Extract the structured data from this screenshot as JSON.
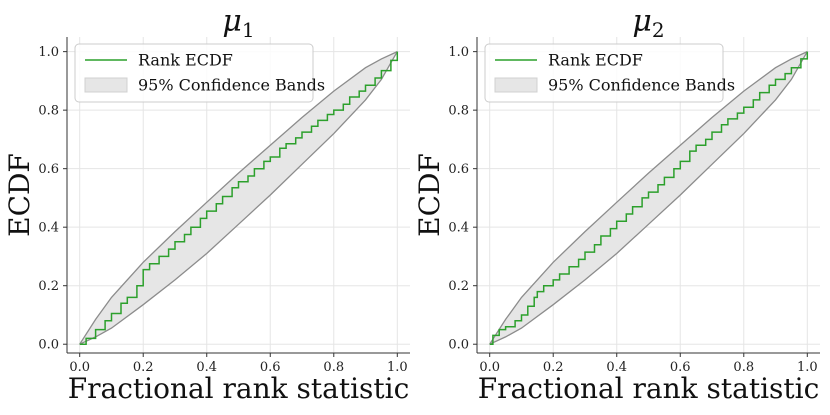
{
  "chart_data": [
    {
      "type": "line",
      "title": "μ",
      "title_subscript": "1",
      "xlabel": "Fractional rank statistic",
      "ylabel": "ECDF",
      "xlim": [
        -0.04,
        1.04
      ],
      "ylim": [
        -0.03,
        1.05
      ],
      "xticks": [
        "0.0",
        "0.2",
        "0.4",
        "0.6",
        "0.8",
        "1.0"
      ],
      "yticks": [
        "0.0",
        "0.2",
        "0.4",
        "0.6",
        "0.8",
        "1.0"
      ],
      "grid": true,
      "legend": {
        "placement": "top-left",
        "entries": [
          "Rank ECDF",
          "95% Confidence Bands"
        ]
      },
      "colors": {
        "ecdf": "#2ca02c",
        "band_fill": "#e6e6e6",
        "band_edge": "#8c8c8c"
      },
      "band": {
        "x": [
          0.0,
          0.05,
          0.1,
          0.2,
          0.3,
          0.4,
          0.5,
          0.6,
          0.7,
          0.8,
          0.9,
          0.95,
          1.0
        ],
        "upper": [
          0.0,
          0.085,
          0.16,
          0.28,
          0.385,
          0.485,
          0.585,
          0.68,
          0.775,
          0.865,
          0.945,
          0.975,
          1.0
        ],
        "lower": [
          0.0,
          0.025,
          0.055,
          0.135,
          0.22,
          0.31,
          0.41,
          0.51,
          0.615,
          0.72,
          0.835,
          0.905,
          1.0
        ]
      },
      "series": [
        {
          "name": "Rank ECDF",
          "x": [
            0.0,
            0.02,
            0.05,
            0.08,
            0.1,
            0.13,
            0.15,
            0.18,
            0.2,
            0.22,
            0.25,
            0.28,
            0.3,
            0.33,
            0.35,
            0.38,
            0.4,
            0.43,
            0.45,
            0.48,
            0.5,
            0.53,
            0.55,
            0.58,
            0.6,
            0.63,
            0.65,
            0.68,
            0.7,
            0.73,
            0.75,
            0.78,
            0.8,
            0.83,
            0.85,
            0.88,
            0.9,
            0.93,
            0.95,
            0.98,
            1.0
          ],
          "y": [
            0.0,
            0.02,
            0.05,
            0.08,
            0.105,
            0.14,
            0.16,
            0.2,
            0.255,
            0.275,
            0.3,
            0.325,
            0.35,
            0.375,
            0.4,
            0.43,
            0.455,
            0.48,
            0.505,
            0.535,
            0.555,
            0.575,
            0.6,
            0.625,
            0.64,
            0.67,
            0.685,
            0.705,
            0.725,
            0.745,
            0.765,
            0.785,
            0.8,
            0.82,
            0.845,
            0.865,
            0.885,
            0.91,
            0.935,
            0.97,
            1.0
          ]
        }
      ]
    },
    {
      "type": "line",
      "title": "μ",
      "title_subscript": "2",
      "xlabel": "Fractional rank statistic",
      "ylabel": "ECDF",
      "xlim": [
        -0.04,
        1.04
      ],
      "ylim": [
        -0.03,
        1.05
      ],
      "xticks": [
        "0.0",
        "0.2",
        "0.4",
        "0.6",
        "0.8",
        "1.0"
      ],
      "yticks": [
        "0.0",
        "0.2",
        "0.4",
        "0.6",
        "0.8",
        "1.0"
      ],
      "grid": true,
      "legend": {
        "placement": "top-left",
        "entries": [
          "Rank ECDF",
          "95% Confidence Bands"
        ]
      },
      "colors": {
        "ecdf": "#2ca02c",
        "band_fill": "#e6e6e6",
        "band_edge": "#8c8c8c"
      },
      "band": {
        "x": [
          0.0,
          0.05,
          0.1,
          0.2,
          0.3,
          0.4,
          0.5,
          0.6,
          0.7,
          0.8,
          0.9,
          0.95,
          1.0
        ],
        "upper": [
          0.0,
          0.085,
          0.16,
          0.28,
          0.385,
          0.485,
          0.585,
          0.68,
          0.775,
          0.865,
          0.945,
          0.975,
          1.0
        ],
        "lower": [
          0.0,
          0.025,
          0.055,
          0.135,
          0.22,
          0.31,
          0.41,
          0.51,
          0.615,
          0.72,
          0.835,
          0.905,
          1.0
        ]
      },
      "series": [
        {
          "name": "Rank ECDF",
          "x": [
            0.0,
            0.01,
            0.03,
            0.05,
            0.08,
            0.1,
            0.12,
            0.14,
            0.15,
            0.17,
            0.2,
            0.22,
            0.25,
            0.28,
            0.3,
            0.33,
            0.35,
            0.38,
            0.4,
            0.43,
            0.45,
            0.48,
            0.5,
            0.53,
            0.55,
            0.58,
            0.6,
            0.63,
            0.65,
            0.68,
            0.7,
            0.73,
            0.75,
            0.78,
            0.8,
            0.83,
            0.85,
            0.88,
            0.9,
            0.93,
            0.95,
            0.98,
            1.0
          ],
          "y": [
            0.0,
            0.03,
            0.05,
            0.06,
            0.08,
            0.1,
            0.13,
            0.16,
            0.18,
            0.2,
            0.22,
            0.24,
            0.265,
            0.29,
            0.315,
            0.34,
            0.37,
            0.395,
            0.42,
            0.445,
            0.47,
            0.5,
            0.52,
            0.545,
            0.57,
            0.6,
            0.625,
            0.66,
            0.68,
            0.7,
            0.725,
            0.75,
            0.77,
            0.79,
            0.81,
            0.835,
            0.86,
            0.885,
            0.905,
            0.925,
            0.945,
            0.975,
            1.0
          ]
        }
      ]
    }
  ]
}
